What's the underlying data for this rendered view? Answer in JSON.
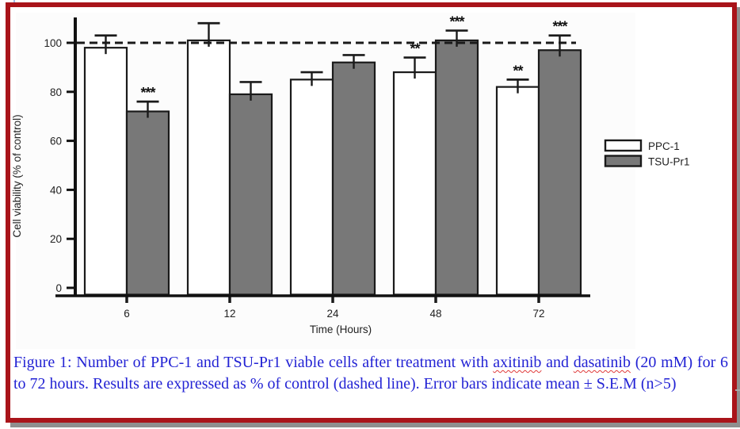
{
  "colors": {
    "frame_border": "#a9141a",
    "frame_shadow": "#8f8f8f",
    "caption_text": "#2323d4",
    "spellcheck_underline": "#e03a3a",
    "bar_outline": "#1a1a1a",
    "ppc1_fill": "#ffffff",
    "tsu_pr1_fill": "#787878"
  },
  "figure": {
    "caption": {
      "part1": "Figure 1: Number of PPC-1 and TSU-Pr1 viable cells after treatment with ",
      "word1": "axitinib",
      "mid": " and ",
      "word2": "dasatinib",
      "part2": " (20 mM) for 6 to 72 hours. Results are expressed as % of control (dashed line). Error bars indicate mean ± S.E.M (n>5)"
    }
  },
  "chart_data": {
    "type": "bar",
    "title": "",
    "xlabel": "Time (Hours)",
    "ylabel": "Cell viability (% of control)",
    "categories": [
      "6",
      "12",
      "24",
      "48",
      "72"
    ],
    "series": [
      {
        "name": "PPC-1",
        "fill": "#ffffff",
        "values": [
          98,
          101,
          85,
          88,
          82
        ],
        "errors": [
          5,
          7,
          3,
          6,
          3
        ],
        "significance": [
          "",
          "",
          "",
          "**",
          "**"
        ]
      },
      {
        "name": "TSU-Pr1",
        "fill": "#787878",
        "values": [
          72,
          79,
          92,
          101,
          97
        ],
        "errors": [
          4,
          5,
          3,
          4,
          6
        ],
        "significance": [
          "***",
          "",
          "",
          "***",
          "***"
        ]
      }
    ],
    "ylim": [
      0,
      112
    ],
    "yticks": [
      0,
      20,
      40,
      60,
      80,
      100
    ],
    "reference_line": {
      "value": 100,
      "style": "dashed",
      "label": "control"
    },
    "grid": false,
    "legend_position": "right"
  }
}
